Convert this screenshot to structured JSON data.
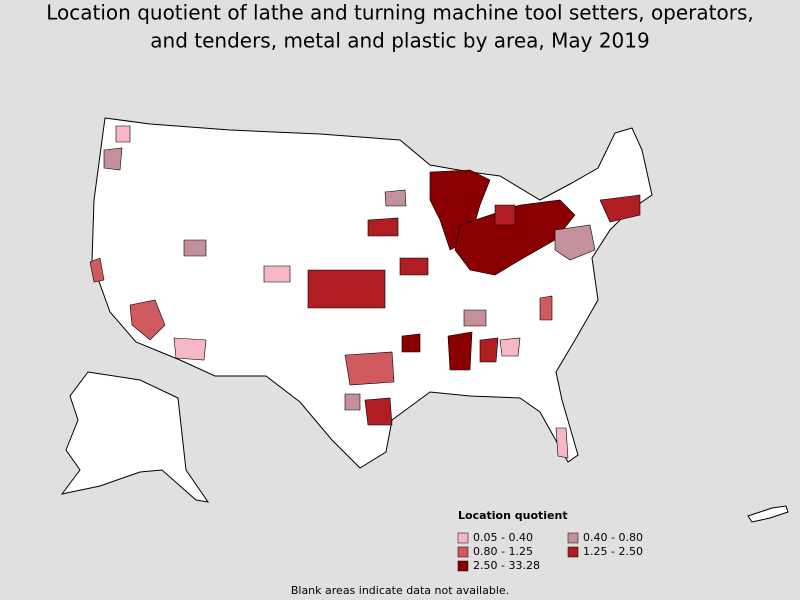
{
  "title": [
    "Location quotient of lathe and turning machine tool setters, operators,",
    "and tenders, metal and plastic by area, May 2019"
  ],
  "legend": {
    "title": "Location quotient",
    "items": [
      {
        "label": "0.05 - 0.40",
        "color": "#f7b7c4"
      },
      {
        "label": "0.40 - 0.80",
        "color": "#c4909a"
      },
      {
        "label": "0.80 - 1.25",
        "color": "#d05a5e"
      },
      {
        "label": "1.25 - 2.50",
        "color": "#b01e24"
      },
      {
        "label": "2.50 - 33.28",
        "color": "#8a0000"
      }
    ]
  },
  "footnote": "Blank areas indicate data not available."
}
